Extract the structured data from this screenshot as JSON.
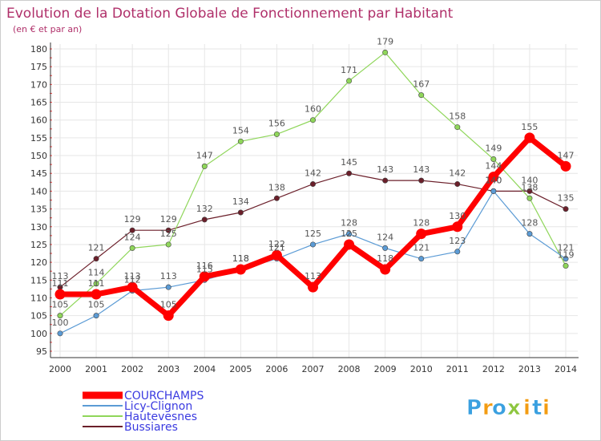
{
  "chart_data": {
    "type": "line",
    "title": "Evolution de la Dotation Globale de Fonctionnement par Habitant",
    "subtitle": "(en € et par an)",
    "xlabel": "",
    "ylabel": "",
    "ylim": [
      95,
      180
    ],
    "y_ticks": [
      95,
      100,
      105,
      110,
      115,
      120,
      125,
      130,
      135,
      140,
      145,
      150,
      155,
      160,
      165,
      170,
      175,
      180
    ],
    "categories": [
      "2000",
      "2001",
      "2002",
      "2003",
      "2004",
      "2005",
      "2006",
      "2007",
      "2008",
      "2009",
      "2010",
      "2011",
      "2012",
      "2013",
      "2014"
    ],
    "series": [
      {
        "name": "Bussiares",
        "color": "#6b1f2a",
        "values": [
          113,
          121,
          129,
          129,
          132,
          134,
          138,
          142,
          145,
          143,
          143,
          142,
          140,
          140,
          135
        ]
      },
      {
        "name": "Hautevesnes",
        "color": "#8fd65a",
        "values": [
          105,
          114,
          124,
          125,
          147,
          154,
          156,
          160,
          171,
          179,
          167,
          158,
          149,
          138,
          119
        ]
      },
      {
        "name": "Licy-Clignon",
        "color": "#5b9bd5",
        "values": [
          100,
          105,
          112,
          113,
          115,
          118,
          121,
          125,
          128,
          124,
          121,
          123,
          140,
          128,
          121
        ]
      },
      {
        "name": "COURCHAMPS",
        "color": "#ff0000",
        "values": [
          111,
          111,
          113,
          105,
          116,
          118,
          122,
          113,
          125,
          118,
          128,
          130,
          144,
          155,
          147
        ]
      }
    ],
    "legend": [
      "COURCHAMPS",
      "Licy-Clignon",
      "Hautevesnes",
      "Bussiares"
    ],
    "legend_position": "bottom-left",
    "grid": true
  },
  "brand": {
    "letters": [
      "P",
      "r",
      "o",
      "x",
      "i",
      "t",
      "i"
    ],
    "colors": [
      "#3aa0e0",
      "#f39c12",
      "#3aa0e0",
      "#8dc63f",
      "#f39c12",
      "#3aa0e0",
      "#f39c12"
    ]
  }
}
